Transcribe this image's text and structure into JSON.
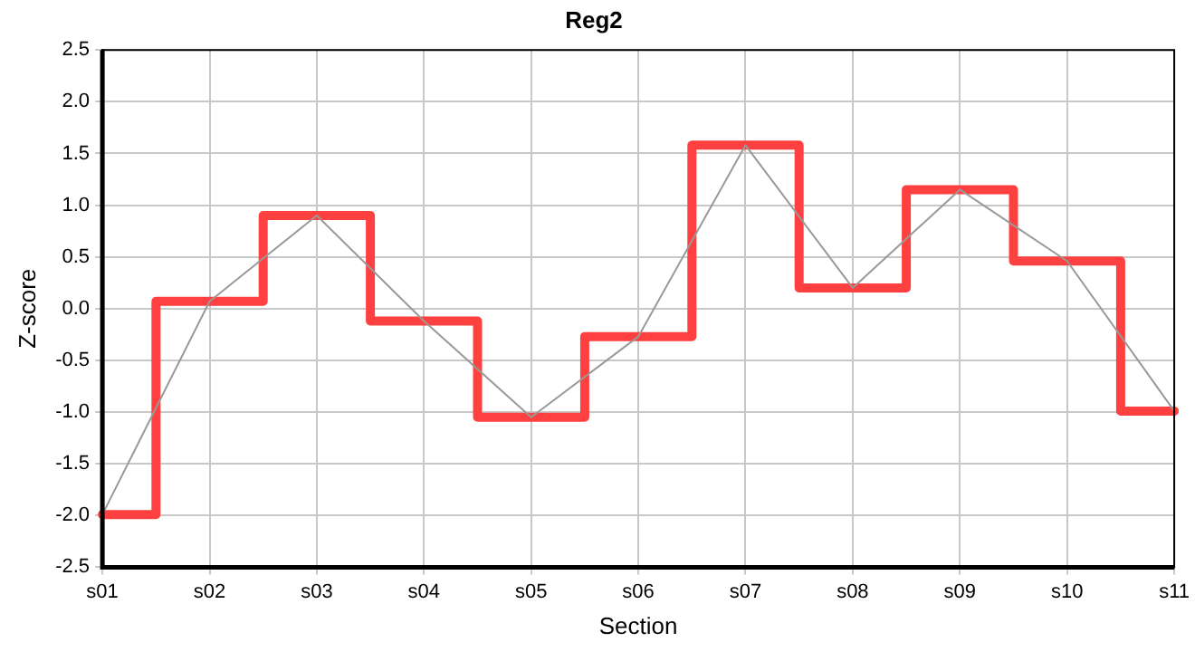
{
  "chart_data": {
    "type": "line",
    "title": "Reg2",
    "xlabel": "Section",
    "ylabel": "Z-score",
    "categories": [
      "s01",
      "s02",
      "s03",
      "s04",
      "s05",
      "s06",
      "s07",
      "s08",
      "s09",
      "s10",
      "s11"
    ],
    "series": [
      {
        "type": "line",
        "color": "#999999",
        "values": [
          -1.99,
          0.07,
          0.9,
          -0.12,
          -1.05,
          -0.27,
          1.58,
          0.2,
          1.15,
          0.46,
          -0.99
        ]
      },
      {
        "type": "step",
        "color": "#ff4040",
        "values": [
          -1.99,
          0.07,
          0.9,
          -0.12,
          -1.05,
          -0.27,
          1.58,
          0.2,
          1.15,
          0.46,
          -0.99
        ]
      }
    ],
    "ylim": [
      -2.5,
      2.5
    ],
    "yticks": [
      -2.5,
      {
        "value": -2,
        "label": "-2.0"
      },
      -1.5,
      {
        "value": -1,
        "label": "-1.0"
      },
      -0.5,
      {
        "value": 0,
        "label": "0.0"
      },
      0.5,
      {
        "value": 1,
        "label": "1.0"
      },
      1.5,
      {
        "value": 2,
        "label": "2.0"
      },
      2.5
    ],
    "grid": true,
    "legend": false,
    "marker": "none"
  }
}
